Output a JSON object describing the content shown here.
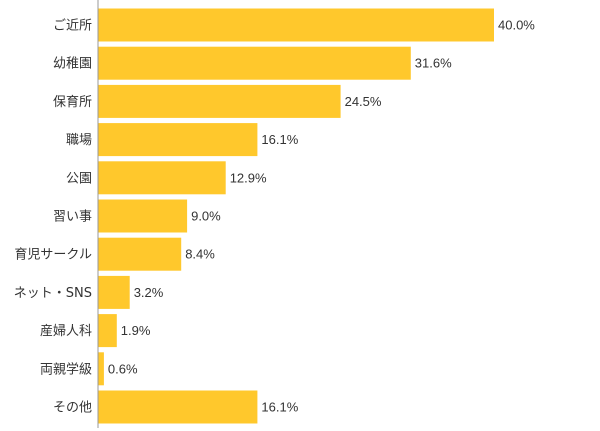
{
  "chart_data": {
    "type": "bar",
    "orientation": "horizontal",
    "categories": [
      "ご近所",
      "幼稚園",
      "保育所",
      "職場",
      "公園",
      "習い事",
      "育児サークル",
      "ネット・SNS",
      "産婦人科",
      "両親学級",
      "その他"
    ],
    "values": [
      40.0,
      31.6,
      24.5,
      16.1,
      12.9,
      9.0,
      8.4,
      3.2,
      1.9,
      0.6,
      16.1
    ],
    "value_labels": [
      "40.0%",
      "31.6%",
      "24.5%",
      "16.1%",
      "12.9%",
      "9.0%",
      "8.4%",
      "3.2%",
      "1.9%",
      "0.6%",
      "16.1%"
    ],
    "title": "",
    "xlabel": "",
    "ylabel": "",
    "xlim": [
      0,
      100
    ],
    "grid": false,
    "legend": "none",
    "colors": {
      "bar": "#FFC82C",
      "axis": "#999999",
      "text": "#333333"
    }
  }
}
